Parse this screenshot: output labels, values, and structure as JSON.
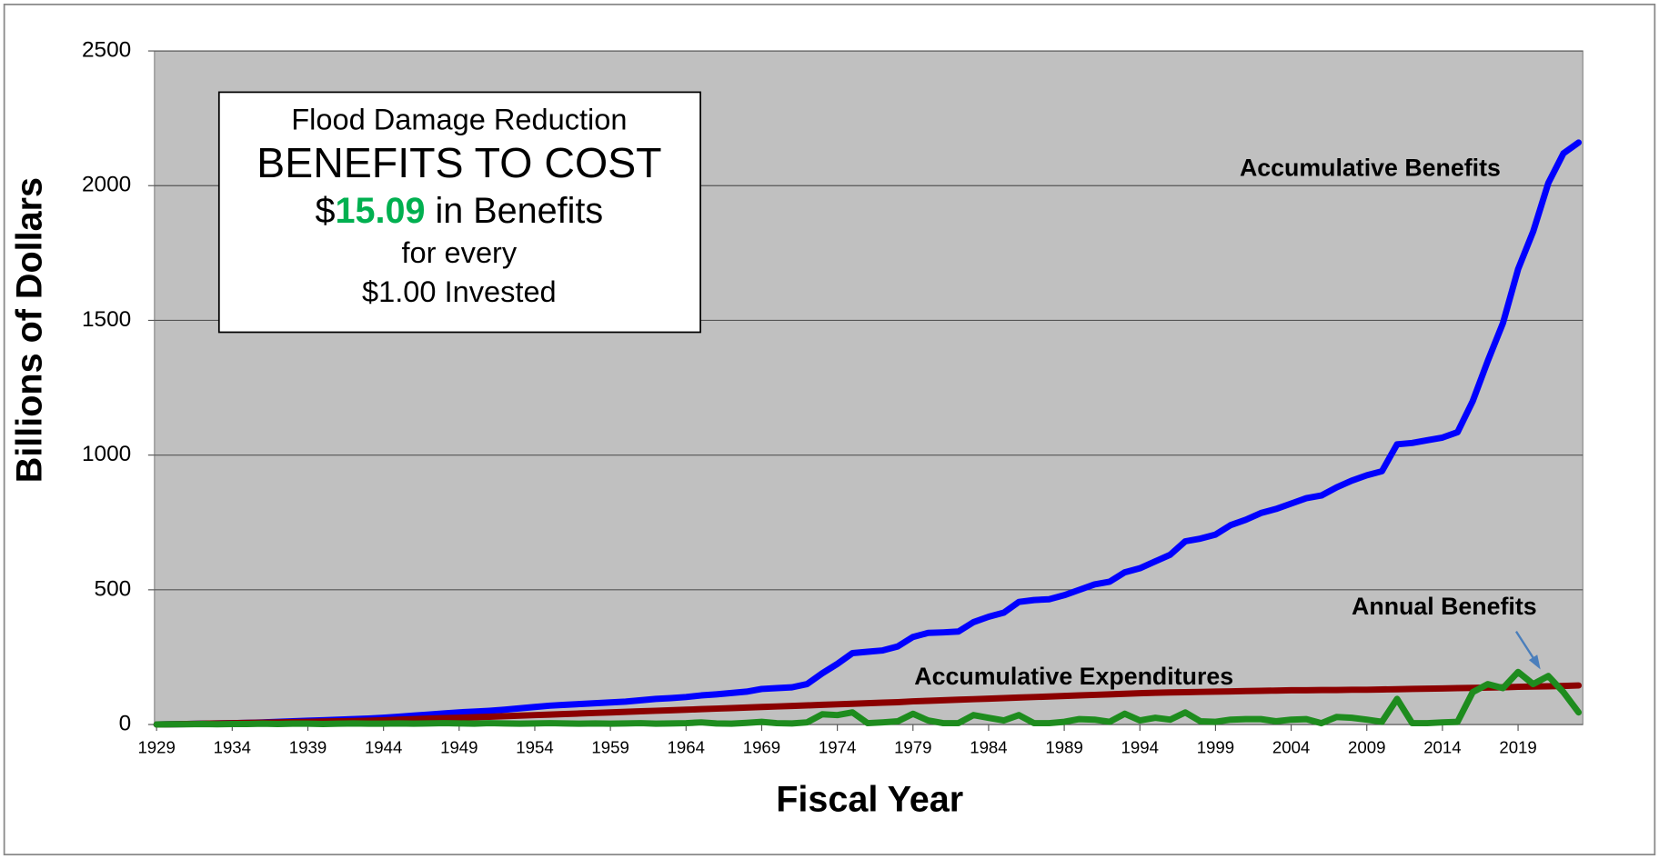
{
  "chart_data": {
    "type": "line",
    "y_axis_label": "Billions of Dollars",
    "x_axis_label": "Fiscal Year",
    "annotation": {
      "line1": "Flood Damage Reduction",
      "line2": "BENEFITS TO COST",
      "line3_prefix": "$",
      "line3_ratio": "15.09",
      "line3_suffix": " in Benefits",
      "line4": "for every",
      "line5": "$1.00 Invested"
    },
    "x": [
      1929,
      1930,
      1931,
      1932,
      1933,
      1934,
      1935,
      1936,
      1937,
      1938,
      1939,
      1940,
      1941,
      1942,
      1943,
      1944,
      1945,
      1946,
      1947,
      1948,
      1949,
      1950,
      1951,
      1952,
      1953,
      1954,
      1955,
      1956,
      1957,
      1958,
      1959,
      1960,
      1961,
      1962,
      1963,
      1964,
      1965,
      1966,
      1967,
      1968,
      1969,
      1970,
      1971,
      1972,
      1973,
      1974,
      1975,
      1976,
      1977,
      1978,
      1979,
      1980,
      1981,
      1982,
      1983,
      1984,
      1985,
      1986,
      1987,
      1988,
      1989,
      1990,
      1991,
      1992,
      1993,
      1994,
      1995,
      1996,
      1997,
      1998,
      1999,
      2000,
      2001,
      2002,
      2003,
      2004,
      2005,
      2006,
      2007,
      2008,
      2009,
      2010,
      2011,
      2012,
      2013,
      2014,
      2015,
      2016,
      2017,
      2018,
      2019,
      2020,
      2021,
      2022,
      2023
    ],
    "series": [
      {
        "name": "Accumulative Benefits",
        "color": "#0000ff",
        "values": [
          0,
          1,
          2,
          3,
          4,
          5,
          6,
          8,
          10,
          12,
          14,
          16,
          18,
          20,
          22,
          25,
          29,
          33,
          37,
          41,
          45,
          48,
          51,
          55,
          60,
          65,
          70,
          73,
          76,
          79,
          82,
          85,
          90,
          95,
          98,
          102,
          108,
          112,
          117,
          122,
          132,
          135,
          138,
          150,
          190,
          225,
          265,
          270,
          275,
          290,
          325,
          340,
          342,
          345,
          380,
          400,
          415,
          455,
          462,
          465,
          480,
          500,
          520,
          530,
          565,
          580,
          605,
          630,
          680,
          690,
          705,
          740,
          760,
          785,
          800,
          820,
          840,
          850,
          880,
          905,
          925,
          940,
          1040,
          1045,
          1055,
          1065,
          1085,
          1200,
          1350,
          1490,
          1690,
          1830,
          2010,
          2120,
          2160
        ]
      },
      {
        "name": "Accumulative Expenditures",
        "color": "#8b0000",
        "values": [
          0,
          1,
          2,
          3,
          4,
          5,
          6,
          7,
          8,
          9,
          10,
          11,
          12,
          13,
          14,
          16,
          18,
          20,
          22,
          24,
          25,
          27,
          29,
          31,
          33,
          35,
          37,
          39,
          41,
          43,
          45,
          47,
          49,
          51,
          53,
          55,
          57,
          59,
          61,
          63,
          65,
          67,
          69,
          71,
          73,
          75,
          77,
          79,
          81,
          83,
          86,
          88,
          90,
          92,
          94,
          96,
          98,
          100,
          102,
          104,
          106,
          108,
          110,
          112,
          114,
          116,
          118,
          119,
          120,
          121,
          122,
          123,
          124,
          125,
          126,
          127,
          127,
          128,
          128,
          129,
          129,
          130,
          131,
          132,
          133,
          134,
          135,
          136,
          137,
          138,
          140,
          141,
          142,
          143,
          145
        ]
      },
      {
        "name": "Annual Benefits",
        "color": "#1e8c1e",
        "values": [
          0,
          1,
          1,
          2,
          1,
          2,
          2,
          3,
          2,
          3,
          3,
          2,
          3,
          4,
          3,
          3,
          4,
          3,
          4,
          5,
          4,
          3,
          5,
          4,
          3,
          4,
          5,
          4,
          3,
          4,
          3,
          4,
          5,
          3,
          4,
          5,
          8,
          4,
          3,
          6,
          10,
          5,
          4,
          8,
          38,
          35,
          45,
          5,
          8,
          12,
          40,
          15,
          5,
          5,
          35,
          25,
          15,
          35,
          5,
          5,
          10,
          20,
          18,
          10,
          40,
          15,
          25,
          18,
          45,
          12,
          10,
          18,
          20,
          20,
          12,
          18,
          20,
          5,
          28,
          25,
          18,
          10,
          95,
          5,
          5,
          8,
          10,
          120,
          150,
          135,
          195,
          150,
          180,
          120,
          45
        ]
      }
    ],
    "xlim": [
      1929,
      2023
    ],
    "xticks": [
      1929,
      1934,
      1939,
      1944,
      1949,
      1954,
      1959,
      1964,
      1969,
      1974,
      1979,
      1984,
      1989,
      1994,
      1999,
      2004,
      2009,
      2014,
      2019
    ],
    "ylim": [
      0,
      2500
    ],
    "yticks": [
      0,
      500,
      1000,
      1500,
      2000,
      2500
    ],
    "grid": true
  }
}
